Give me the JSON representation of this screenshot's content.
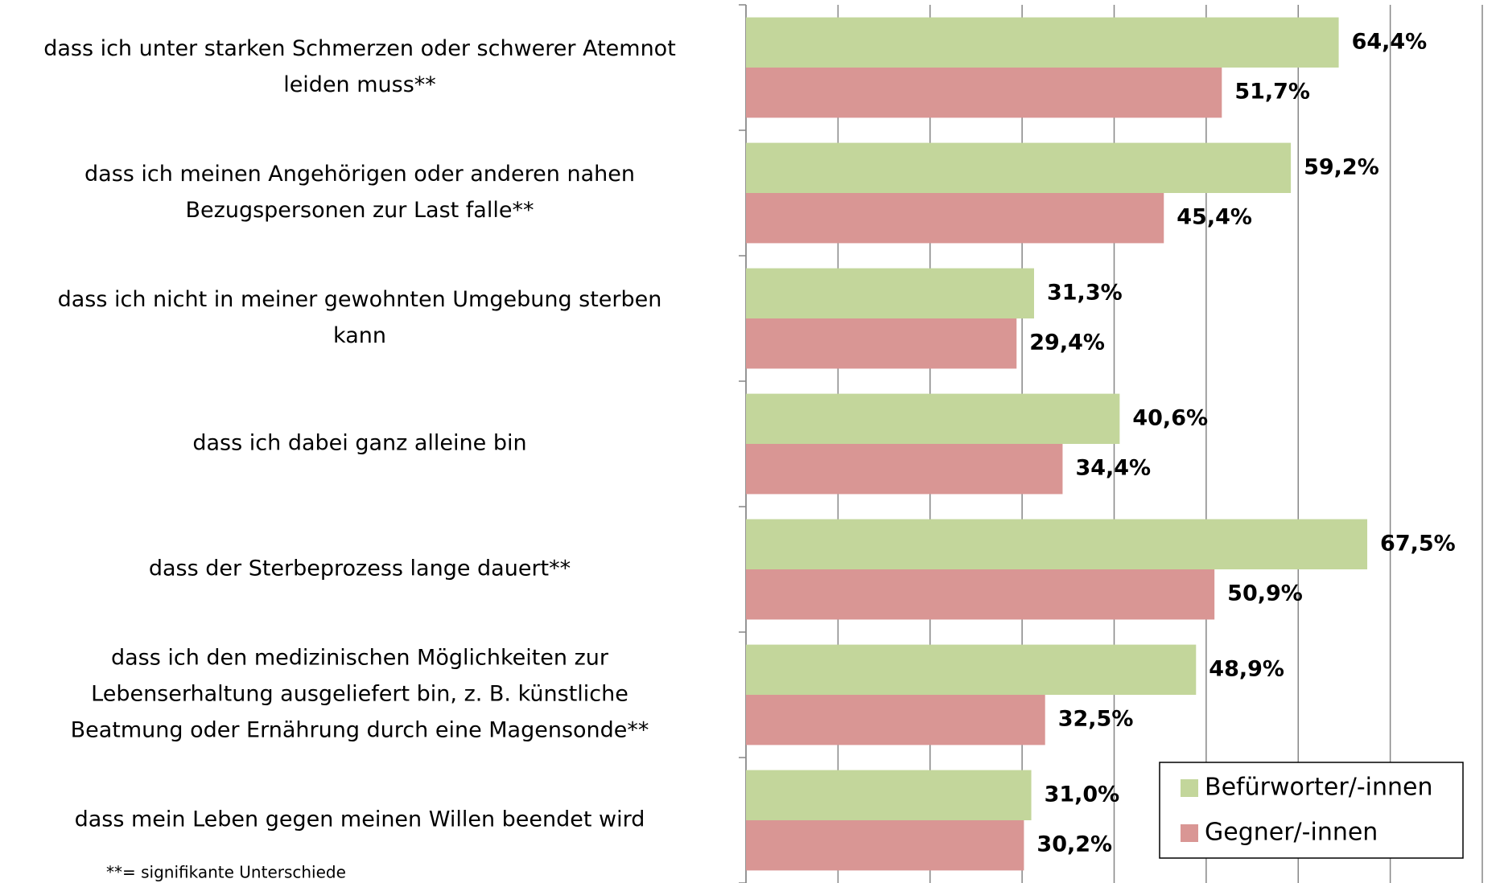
{
  "chart_data": {
    "type": "bar",
    "orientation": "horizontal",
    "categories": [
      [
        "dass ich unter starken Schmerzen oder schwerer Atemnot",
        "leiden muss**"
      ],
      [
        "dass ich meinen Angehörigen oder anderen nahen",
        "Bezugspersonen zur Last falle**"
      ],
      [
        "dass ich nicht in meiner gewohnten Umgebung sterben",
        "kann"
      ],
      [
        "dass ich dabei ganz alleine bin"
      ],
      [
        "dass der Sterbeprozess lange dauert**"
      ],
      [
        "dass ich den medizinischen Möglichkeiten zur",
        "Lebenserhaltung ausgeliefert bin, z. B. künstliche",
        "Beatmung oder Ernährung durch eine Magensonde**"
      ],
      [
        "dass mein Leben gegen meinen Willen beendet wird"
      ]
    ],
    "series": [
      {
        "name": "Befürworter/-innen",
        "color": "#c3d69b",
        "values": [
          64.4,
          59.2,
          31.3,
          40.6,
          67.5,
          48.9,
          31.0
        ],
        "value_labels": [
          "64,4%",
          "59,2%",
          "31,3%",
          "40,6%",
          "67,5%",
          "48,9%",
          "31,0%"
        ]
      },
      {
        "name": "Gegner/-innen",
        "color": "#d99694",
        "values": [
          51.7,
          45.4,
          29.4,
          34.4,
          50.9,
          32.5,
          30.2
        ],
        "value_labels": [
          "51,7%",
          "45,4%",
          "29,4%",
          "34,4%",
          "50,9%",
          "32,5%",
          "30,2%"
        ]
      }
    ],
    "xlim": [
      0,
      80
    ],
    "xticks": [
      0,
      10,
      20,
      30,
      40,
      50,
      60,
      70,
      80
    ],
    "grid": true,
    "legend": "bottom-right",
    "footnote": "**= signifikante Unterschiede"
  }
}
